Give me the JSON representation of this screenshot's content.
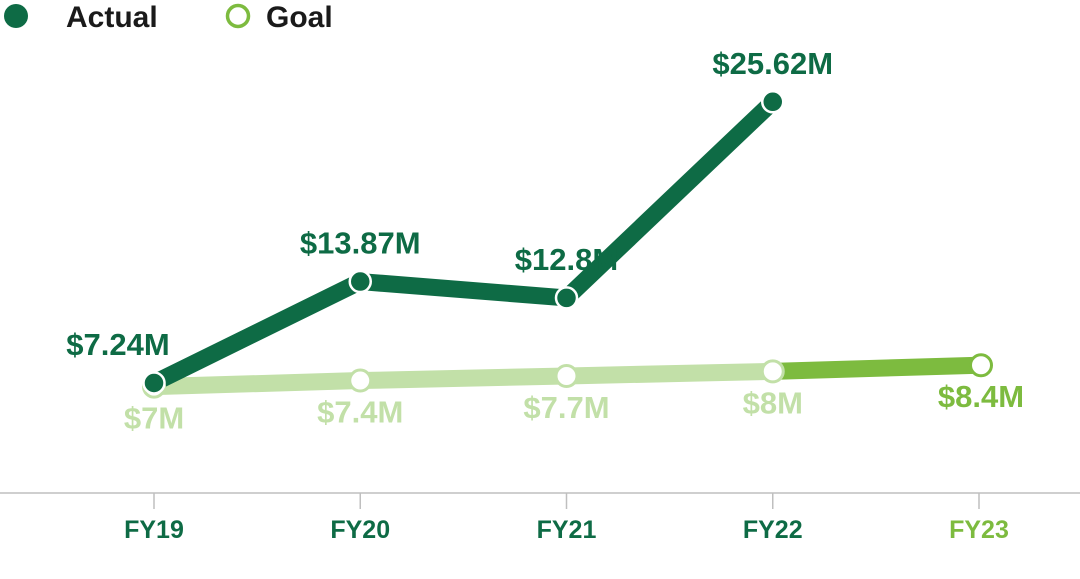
{
  "colors": {
    "actual": "#0e6b45",
    "goal": "#c2e0a8",
    "goal_current": "#7dbb3f",
    "axis": "#bfbfbf",
    "tick_text": "#0e6b45",
    "tick_text_current": "#7dbb3f"
  },
  "legend": {
    "actual_label": "Actual",
    "goal_label": "Goal"
  },
  "chart_data": {
    "type": "line",
    "categories": [
      "FY19",
      "FY20",
      "FY21",
      "FY22",
      "FY23"
    ],
    "series": [
      {
        "name": "Actual",
        "values": [
          7.24,
          13.87,
          12.8,
          25.62,
          null
        ],
        "labels": [
          "$7.24M",
          "$13.87M",
          "$12.8M",
          "$25.62M",
          ""
        ]
      },
      {
        "name": "Goal",
        "values": [
          7,
          7.4,
          7.7,
          8,
          8.4
        ],
        "labels": [
          "$7M",
          "$7.4M",
          "$7.7M",
          "$8M",
          "$8.4M"
        ]
      }
    ],
    "xlabel": "",
    "ylabel": "",
    "grid": false,
    "legend_position": "top-left"
  }
}
